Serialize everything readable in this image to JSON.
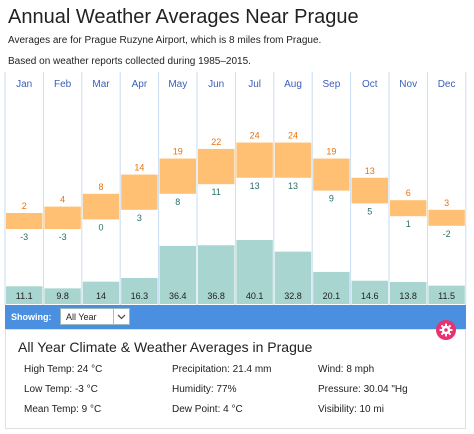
{
  "header": {
    "title": "Annual Weather Averages Near Prague",
    "subtitle1": "Averages are for Prague Ruzyne Airport, which is 8 miles from Prague.",
    "subtitle2": "Based on weather reports collected during 1985–2015."
  },
  "chart_data": {
    "type": "bar",
    "categories": [
      "Jan",
      "Feb",
      "Mar",
      "Apr",
      "May",
      "Jun",
      "Jul",
      "Aug",
      "Sep",
      "Oct",
      "Nov",
      "Dec"
    ],
    "temperature_high": [
      2,
      4,
      8,
      14,
      19,
      22,
      24,
      24,
      19,
      13,
      6,
      3
    ],
    "temperature_low": [
      -3,
      -3,
      0,
      3,
      8,
      11,
      13,
      13,
      9,
      5,
      1,
      -2
    ],
    "precipitation": [
      11.1,
      9.8,
      14,
      16.3,
      36.4,
      36.8,
      40.1,
      32.8,
      20.1,
      14.6,
      13.8,
      11.5
    ],
    "colors": {
      "temp_band": "#ffc073",
      "temp_high_label": "#e8730c",
      "temp_low_label": "#2a6f6a",
      "precip_bar": "#a8d5cf",
      "month_label": "#3a5fb8",
      "gridline": "#c9ddf2"
    }
  },
  "controls": {
    "showing_label": "Showing:",
    "select_value": "All Year",
    "gear_icon": "gear-icon",
    "gear_color": "#e8336f"
  },
  "summary": {
    "title": "All Year Climate & Weather Averages in Prague",
    "high_temp": "High Temp: 24 °C",
    "low_temp": "Low Temp: -3 °C",
    "mean_temp": "Mean Temp: 9 °C",
    "precipitation": "Precipitation: 21.4 mm",
    "humidity": "Humidity: 77%",
    "dew_point": "Dew Point: 4 °C",
    "wind": "Wind: 8 mph",
    "pressure": "Pressure: 30.04 \"Hg",
    "visibility": "Visibility: 10 mi"
  }
}
